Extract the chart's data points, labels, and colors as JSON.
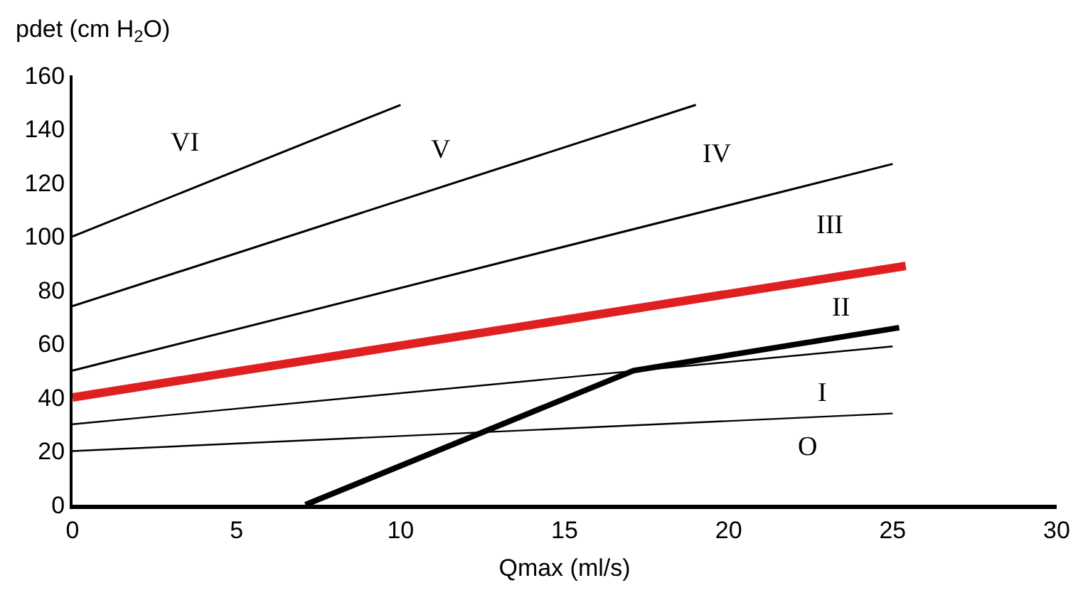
{
  "chart_data": {
    "type": "line",
    "xlabel": "Qmax (ml/s)",
    "ylabel": "pdet (cm H$_{2}$O)",
    "xlim": [
      0,
      30
    ],
    "xticks": [
      0,
      5,
      10,
      15,
      20,
      25,
      30
    ],
    "ylim": [
      0,
      160
    ],
    "yticks": [
      0,
      20,
      40,
      60,
      80,
      100,
      120,
      140,
      160
    ],
    "grid": false,
    "marker": "none",
    "line_style": "solid",
    "series": [
      {
        "color": "#000000",
        "x": [
          0,
          10
        ],
        "values": [
          100,
          149
        ]
      },
      {
        "color": "#000000",
        "x": [
          0,
          19
        ],
        "values": [
          74,
          149
        ]
      },
      {
        "color": "#000000",
        "x": [
          0,
          25
        ],
        "values": [
          50,
          127
        ]
      },
      {
        "color": "#e02020",
        "x": [
          0,
          25.4
        ],
        "values": [
          40,
          89
        ]
      },
      {
        "color": "#000000",
        "x": [
          0,
          25
        ],
        "values": [
          30,
          59
        ]
      },
      {
        "color": "#000000",
        "x": [
          0,
          25
        ],
        "values": [
          20,
          34
        ]
      },
      {
        "color": "#000000",
        "x": [
          7.1,
          17.1,
          25.2
        ],
        "values": [
          0,
          50,
          66
        ]
      }
    ],
    "annotations": [
      "VI",
      "V",
      "IV",
      "III",
      "II",
      "I",
      "O"
    ]
  }
}
